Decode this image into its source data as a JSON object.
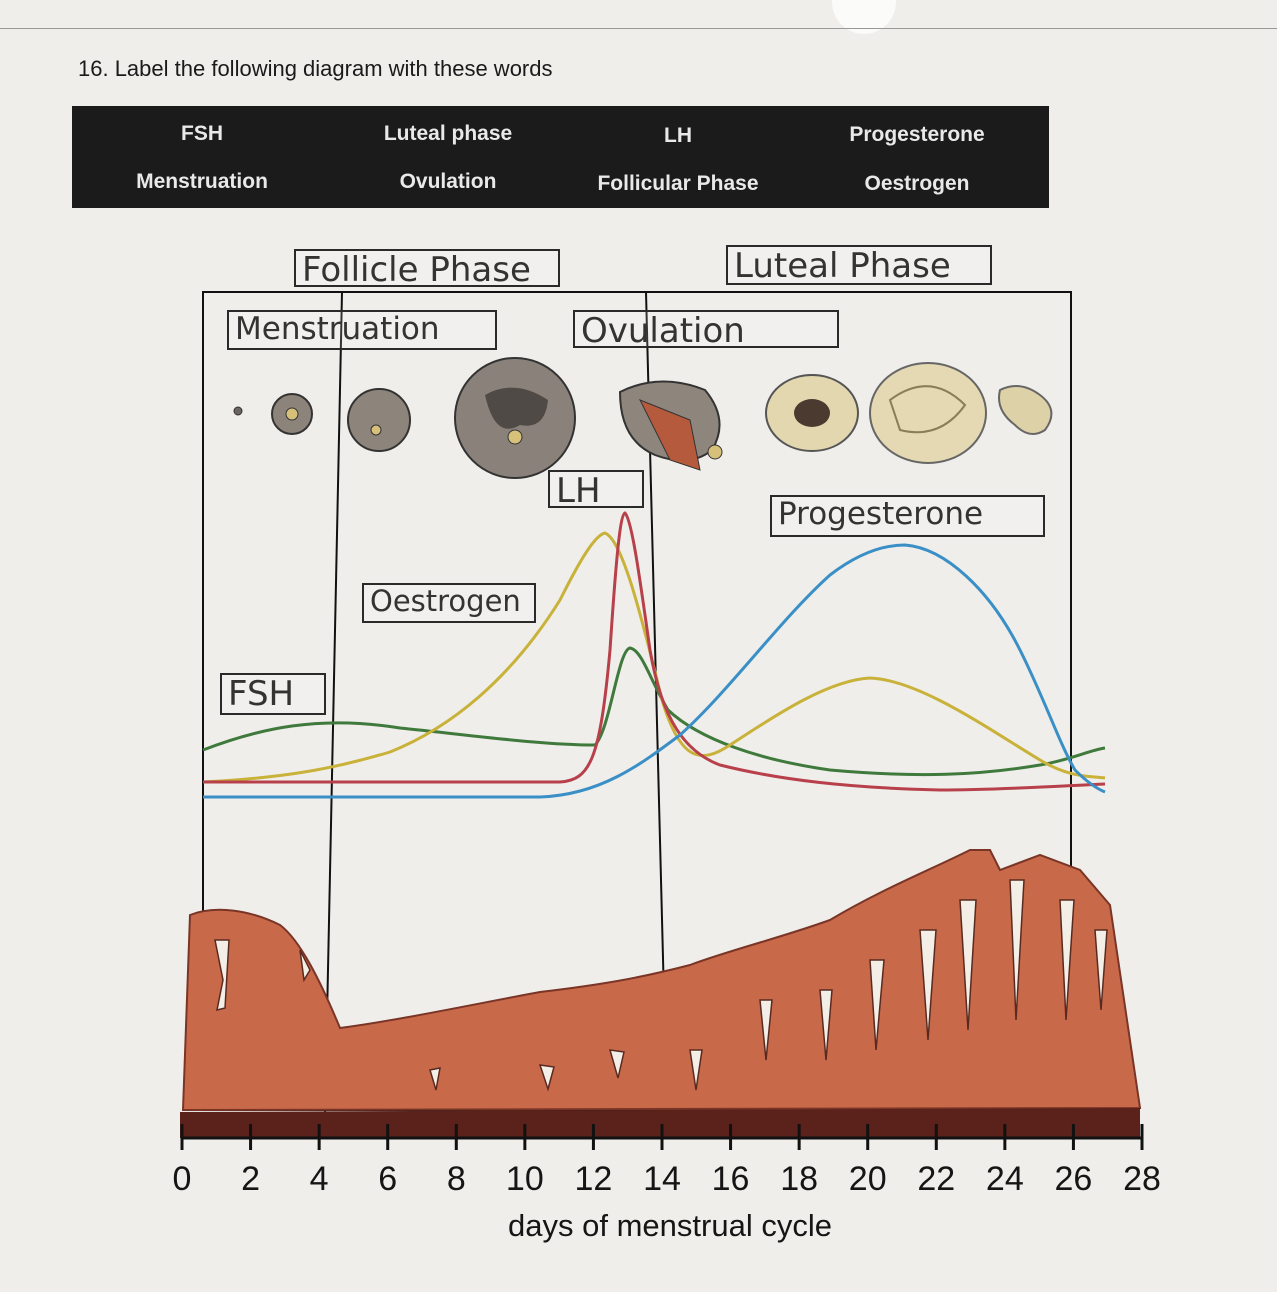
{
  "question": {
    "text": "16. Label the following diagram with these words"
  },
  "word_bank": {
    "row1": [
      "FSH",
      "Luteal phase",
      "LH",
      "Progesterone"
    ],
    "row2": [
      "Menstruation",
      "Ovulation",
      "Follicular Phase",
      "Oestrogen"
    ]
  },
  "answers": {
    "follicle_phase": "Follicle Phase",
    "luteal_phase": "Luteal Phase",
    "menstruation": "Menstruation",
    "ovulation": "Ovulation",
    "lh": "LH",
    "progesterone": "Progesterone",
    "oestrogen": "Oestrogen",
    "fsh": "FSH"
  },
  "axis": {
    "ticks": [
      "0",
      "2",
      "4",
      "6",
      "8",
      "10",
      "12",
      "14",
      "16",
      "18",
      "20",
      "22",
      "24",
      "26",
      "28"
    ],
    "title": "days of menstrual cycle"
  },
  "colors": {
    "fsh": "#3f7a3c",
    "oestrogen": "#c9b23a",
    "lh": "#b8404a",
    "progesterone": "#3a8fc7",
    "endometrium": "#c8694a",
    "endometrium_base": "#5a221a"
  }
}
